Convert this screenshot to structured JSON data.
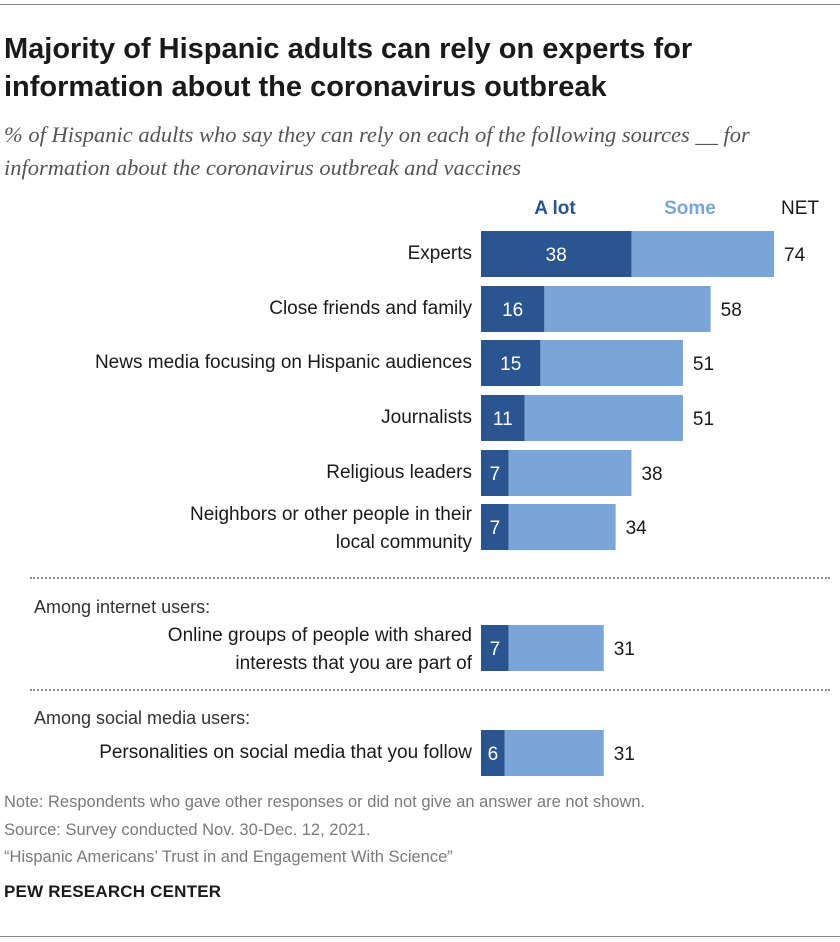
{
  "title": "Majority of Hispanic adults can rely on experts for information about the coronavirus outbreak",
  "subtitle": "% of Hispanic adults who say they can rely on each of the following sources __ for information about the coronavirus outbreak and vaccines",
  "legend": {
    "a_lot": "A lot",
    "some": "Some",
    "net": "NET"
  },
  "sections": {
    "internet": "Among internet users:",
    "social": "Among social media users:"
  },
  "row_labels": {
    "experts": "Experts",
    "friends": "Close friends and family",
    "hispanic_media": "News media focusing on Hispanic audiences",
    "journalists": "Journalists",
    "religious": "Religious leaders",
    "neighbors_1": "Neighbors or other people in their",
    "neighbors_2": "local community",
    "online_1": "Online groups of people with shared",
    "online_2": "interests that you are part of",
    "personalities": "Personalities on social media that you follow"
  },
  "footer": {
    "note": "Note: Respondents who gave other responses or did not give an answer are not shown.",
    "source": "Source: Survey conducted Nov. 30-Dec. 12, 2021.",
    "report": "“Hispanic Americans’ Trust in and Engagement With Science”",
    "brand": "PEW RESEARCH CENTER"
  },
  "colors": {
    "a_lot": "#2a5591",
    "some": "#7aa5d9",
    "text": "#1a1a1a",
    "bar_text": "#ffffff"
  },
  "chart_data": {
    "type": "bar",
    "orientation": "horizontal",
    "stacked": true,
    "categories": [
      "Experts",
      "Close friends and family",
      "News media focusing on Hispanic audiences",
      "Journalists",
      "Religious leaders",
      "Neighbors or other people in their local community",
      "Online groups of people with shared interests that you are part of",
      "Personalities on social media that you follow"
    ],
    "series": [
      {
        "name": "A lot",
        "values": [
          38,
          16,
          15,
          11,
          7,
          7,
          7,
          6
        ]
      },
      {
        "name": "Some",
        "values": [
          36,
          42,
          36,
          40,
          31,
          27,
          24,
          25
        ]
      }
    ],
    "net": [
      74,
      58,
      51,
      51,
      38,
      34,
      31,
      31
    ],
    "xlim": [
      0,
      100
    ],
    "units": "%"
  }
}
